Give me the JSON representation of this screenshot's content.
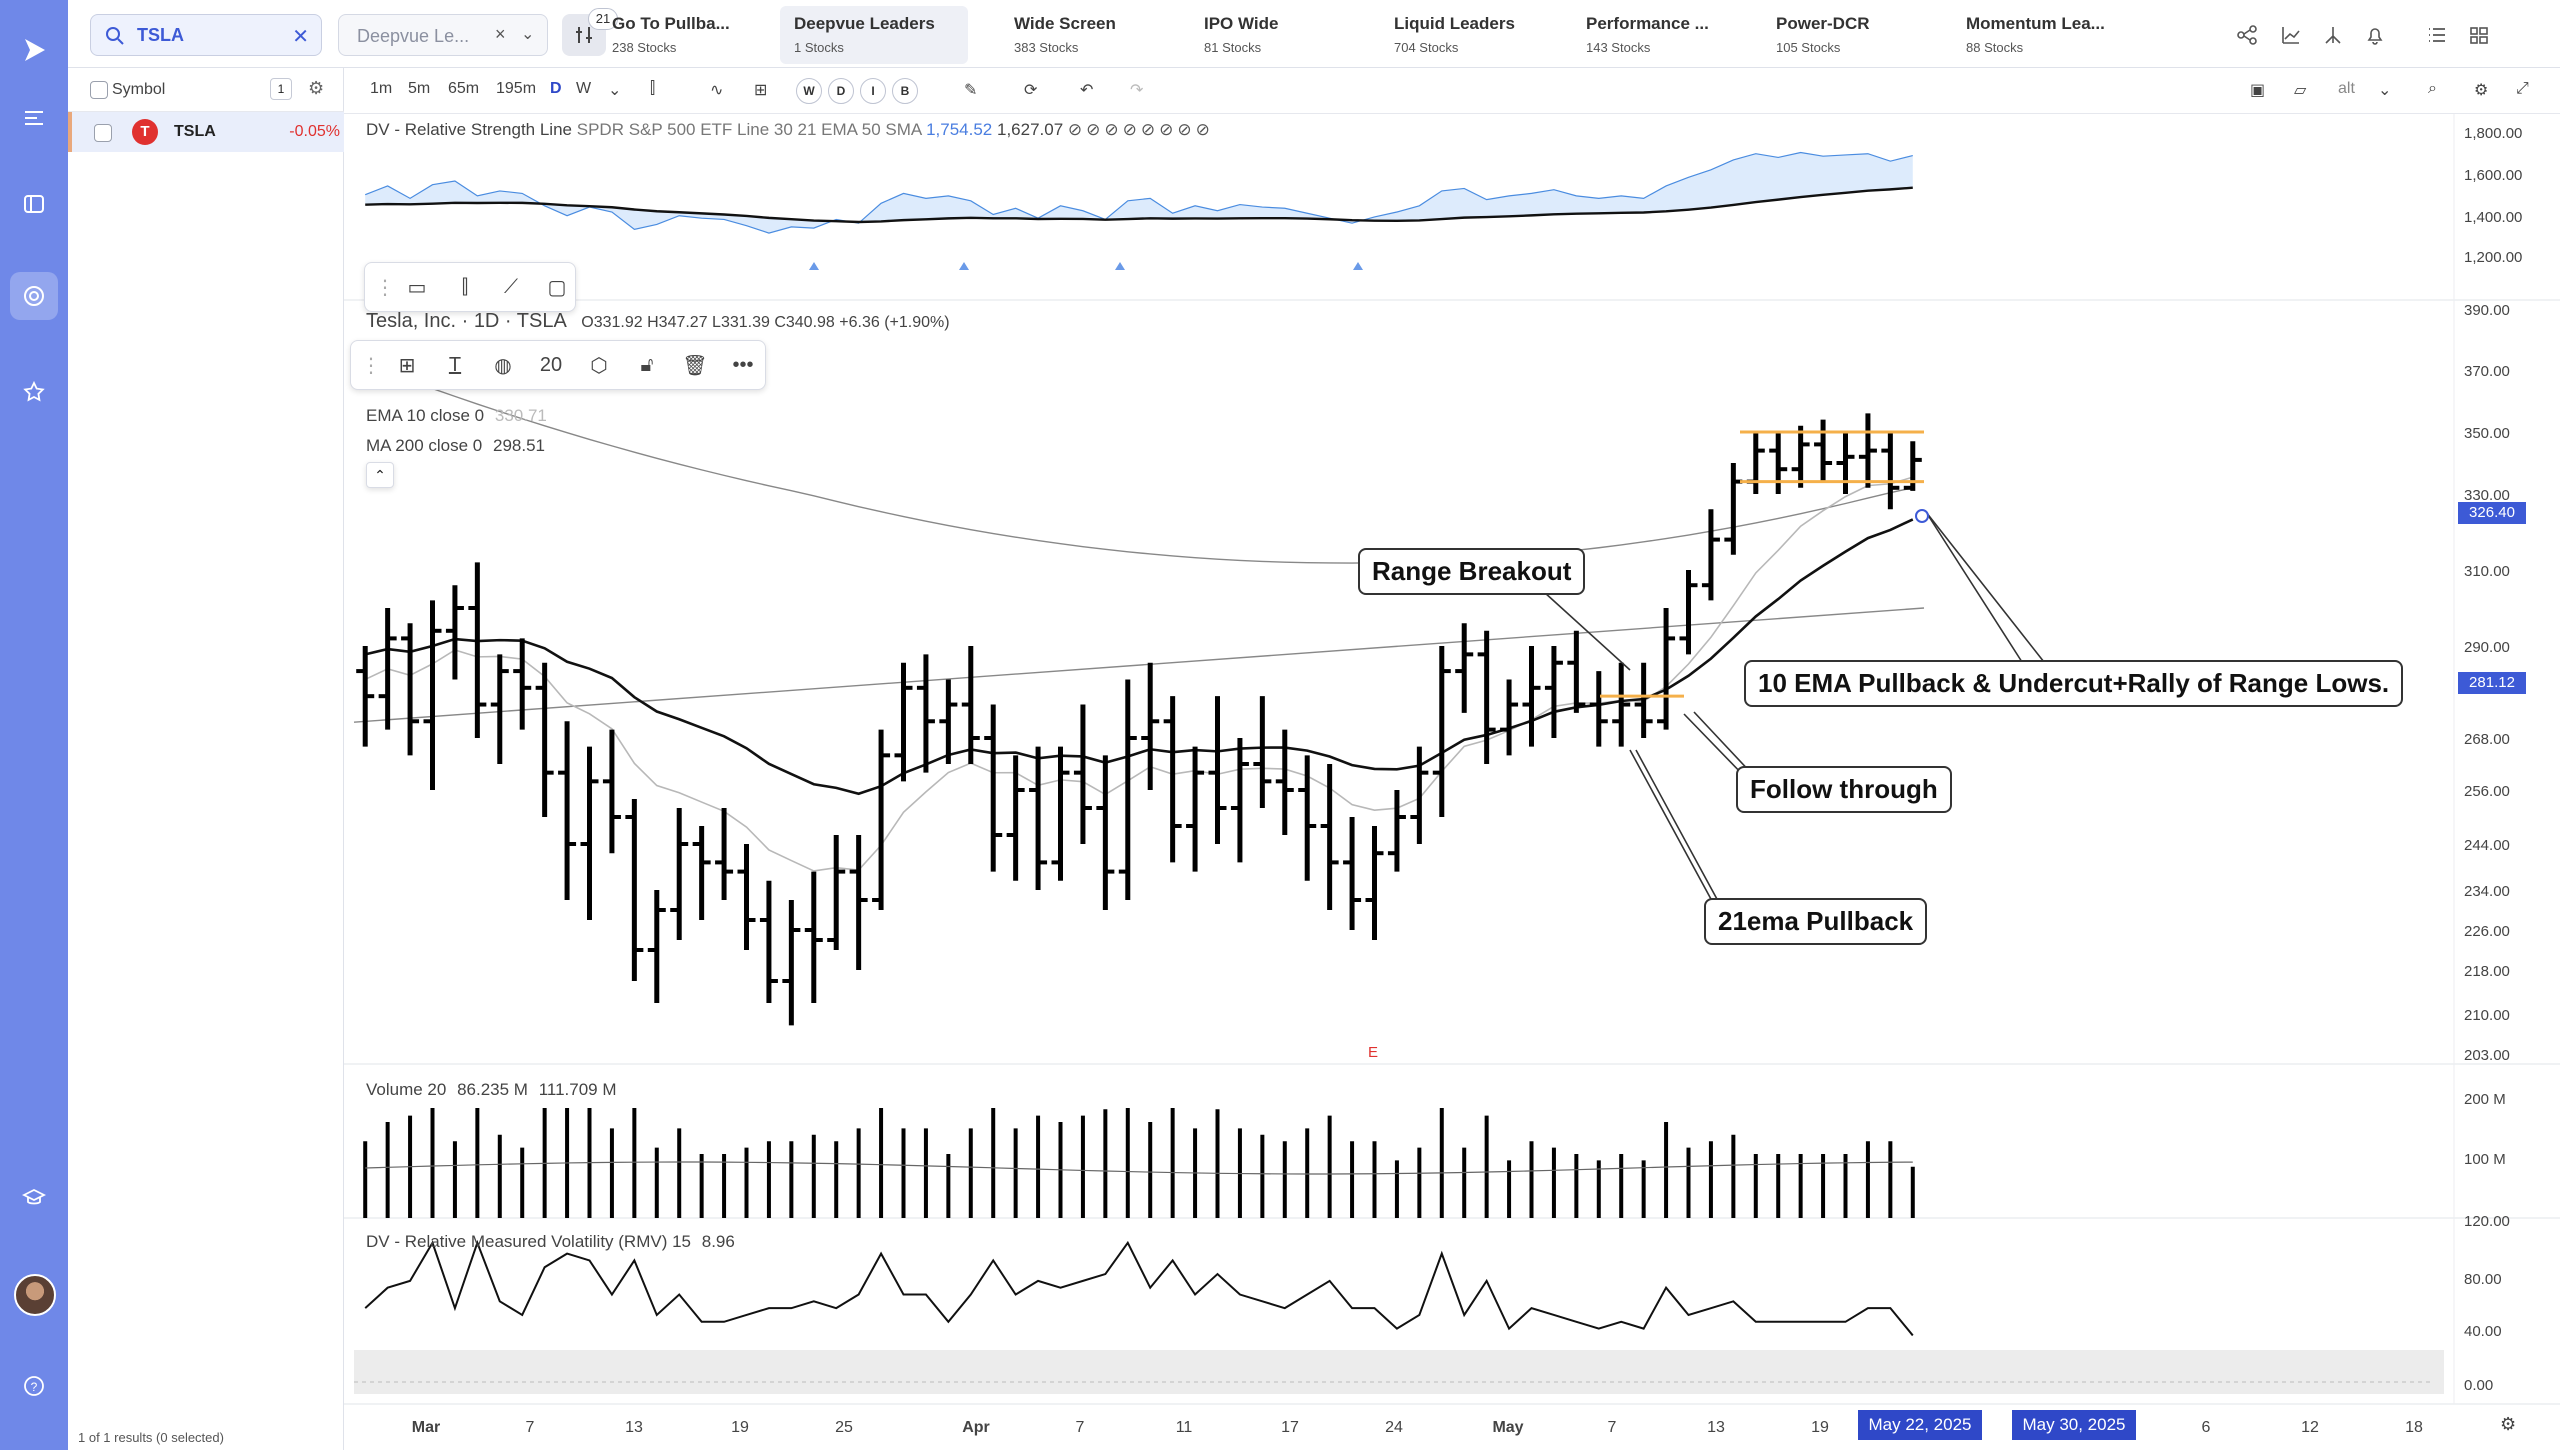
{
  "app": {
    "rail_icons": [
      "play-icon",
      "menu-icon",
      "layout-icon",
      "target-icon",
      "star-icon",
      "learn-icon",
      "help-icon"
    ]
  },
  "header": {
    "search_value": "TSLA",
    "list_select_value": "Deepvue Le...",
    "filter_count": "21",
    "watchlists": [
      {
        "name": "Go To Pullba...",
        "count": "238 Stocks"
      },
      {
        "name": "Deepvue Leaders",
        "count": "1 Stocks"
      },
      {
        "name": "Wide Screen",
        "count": "383 Stocks"
      },
      {
        "name": "IPO Wide",
        "count": "81 Stocks"
      },
      {
        "name": "Liquid Leaders",
        "count": "704 Stocks"
      },
      {
        "name": "Performance ...",
        "count": "143 Stocks"
      },
      {
        "name": "Power-DCR",
        "count": "105 Stocks"
      },
      {
        "name": "Momentum Lea...",
        "count": "88 Stocks"
      }
    ]
  },
  "symbols": {
    "header_label": "Symbol",
    "header_count": "1",
    "rows": [
      {
        "ticker": "TSLA",
        "change": "-0.05%",
        "logo": "T"
      }
    ],
    "footer": "1 of 1 results (0 selected)"
  },
  "toolbar": {
    "intervals": [
      "1m",
      "5m",
      "65m",
      "195m",
      "D",
      "W"
    ],
    "active_interval": "D",
    "compare_letters": [
      "W",
      "D",
      "I",
      "B"
    ],
    "alt_label": "alt"
  },
  "rs_pane": {
    "label": "DV - Relative Strength Line",
    "params": "SPDR S&P 500 ETF Line 30 21 EMA 50 SMA",
    "value1": "1,754.52",
    "value2": "1,627.07",
    "axis": [
      "1,800.00",
      "1,600.00",
      "1,400.00",
      "1,200.00"
    ]
  },
  "main_pane": {
    "title": "Tesla, Inc. · 1D · TSLA",
    "ohlc": "O331.92  H347.27  L331.39  C340.98  +6.36 (+1.90%)",
    "ema_label": "EMA 10 close 0",
    "ema_value": "330.71",
    "ma_label": "MA 200 close 0",
    "ma_value": "298.51",
    "text_size": "20",
    "axis": [
      "390.00",
      "370.00",
      "350.00",
      "330.00",
      "310.00",
      "290.00",
      "268.00",
      "256.00",
      "244.00",
      "234.00",
      "226.00",
      "218.00",
      "210.00",
      "203.00"
    ],
    "price_tag_1": "326.40",
    "price_tag_2": "281.12",
    "earnings_marker": "E",
    "colors": {
      "price_tag_1": "#3d5ad6",
      "price_tag_2": "#3d5ad6",
      "range_lines": "#f5b04a"
    }
  },
  "annotations": {
    "range_breakout": "Range Breakout",
    "ema_pullback": "10 EMA Pullback & Undercut+Rally of Range Lows.",
    "follow_through": "Follow through",
    "ema21_pullback": "21ema Pullback"
  },
  "volume_pane": {
    "label": "Volume 20",
    "v1": "86.235 M",
    "v2": "111.709 M",
    "axis": [
      "200 M",
      "100 M",
      "120.00"
    ]
  },
  "rmv_pane": {
    "label": "DV - Relative Measured Volatility (RMV) 15",
    "value": "8.96",
    "axis": [
      "80.00",
      "40.00",
      "0.00"
    ]
  },
  "time_axis": {
    "labels": [
      "Mar",
      "7",
      "13",
      "19",
      "25",
      "Apr",
      "7",
      "11",
      "17",
      "24",
      "May",
      "7",
      "13",
      "19",
      "6",
      "12",
      "18"
    ],
    "date_tag_1": "May 22, 2025",
    "date_tag_2": "May 30, 2025"
  },
  "chart_data": {
    "type": "bar",
    "title": "Tesla, Inc. · 1D · TSLA",
    "y_range": [
      203,
      390
    ],
    "x_labels": [
      "Mar",
      "7",
      "13",
      "19",
      "25",
      "Apr",
      "7",
      "11",
      "17",
      "24",
      "May",
      "7",
      "13",
      "19"
    ],
    "ohlc": [
      [
        284,
        290,
        266,
        278
      ],
      [
        278,
        300,
        270,
        292
      ],
      [
        292,
        296,
        264,
        272
      ],
      [
        272,
        302,
        256,
        294
      ],
      [
        294,
        306,
        282,
        300
      ],
      [
        300,
        312,
        268,
        276
      ],
      [
        276,
        288,
        262,
        284
      ],
      [
        284,
        292,
        270,
        280
      ],
      [
        280,
        286,
        250,
        260
      ],
      [
        260,
        272,
        232,
        244
      ],
      [
        244,
        266,
        228,
        258
      ],
      [
        258,
        270,
        242,
        250
      ],
      [
        250,
        254,
        216,
        222
      ],
      [
        222,
        234,
        212,
        230
      ],
      [
        230,
        252,
        224,
        244
      ],
      [
        244,
        248,
        228,
        240
      ],
      [
        240,
        252,
        232,
        238
      ],
      [
        238,
        244,
        222,
        228
      ],
      [
        228,
        236,
        212,
        216
      ],
      [
        216,
        232,
        208,
        226
      ],
      [
        226,
        238,
        212,
        224
      ],
      [
        224,
        246,
        222,
        238
      ],
      [
        238,
        246,
        218,
        232
      ],
      [
        232,
        270,
        230,
        264
      ],
      [
        264,
        286,
        258,
        280
      ],
      [
        280,
        288,
        260,
        272
      ],
      [
        272,
        282,
        262,
        276
      ],
      [
        276,
        290,
        262,
        268
      ],
      [
        268,
        276,
        238,
        246
      ],
      [
        246,
        264,
        236,
        256
      ],
      [
        256,
        266,
        234,
        240
      ],
      [
        240,
        266,
        236,
        260
      ],
      [
        260,
        276,
        244,
        252
      ],
      [
        252,
        264,
        230,
        238
      ],
      [
        238,
        282,
        232,
        268
      ],
      [
        268,
        286,
        256,
        272
      ],
      [
        272,
        278,
        240,
        248
      ],
      [
        248,
        266,
        238,
        260
      ],
      [
        260,
        278,
        244,
        252
      ],
      [
        252,
        268,
        240,
        262
      ],
      [
        262,
        278,
        252,
        258
      ],
      [
        258,
        270,
        246,
        256
      ],
      [
        256,
        264,
        236,
        248
      ],
      [
        248,
        262,
        230,
        240
      ],
      [
        240,
        250,
        226,
        232
      ],
      [
        232,
        248,
        224,
        242
      ],
      [
        242,
        256,
        238,
        250
      ],
      [
        250,
        266,
        244,
        260
      ],
      [
        260,
        290,
        250,
        284
      ],
      [
        284,
        296,
        274,
        288
      ],
      [
        288,
        294,
        262,
        270
      ],
      [
        270,
        282,
        264,
        276
      ],
      [
        276,
        290,
        266,
        280
      ],
      [
        280,
        290,
        268,
        286
      ],
      [
        286,
        294,
        274,
        276
      ],
      [
        276,
        284,
        266,
        272
      ],
      [
        272,
        286,
        266,
        276
      ],
      [
        276,
        286,
        268,
        272
      ],
      [
        272,
        300,
        270,
        292
      ],
      [
        292,
        310,
        288,
        306
      ],
      [
        306,
        326,
        302,
        318
      ],
      [
        318,
        340,
        314,
        334
      ],
      [
        334,
        350,
        330,
        344
      ],
      [
        344,
        350,
        330,
        338
      ],
      [
        338,
        352,
        332,
        346
      ],
      [
        346,
        354,
        334,
        340
      ],
      [
        340,
        350,
        330,
        342
      ],
      [
        342,
        356,
        332,
        344
      ],
      [
        344,
        350,
        326,
        332
      ],
      [
        332,
        347,
        331,
        341
      ]
    ],
    "series": [
      {
        "name": "EMA 10 close 0"
      },
      {
        "name": "MA 200 close 0"
      }
    ]
  }
}
